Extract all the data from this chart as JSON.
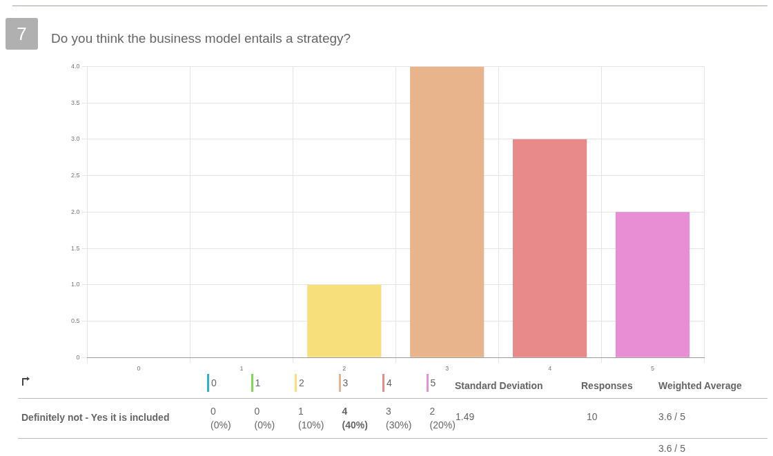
{
  "chart_data": {
    "type": "bar",
    "title": "Do you think the business model entails a strategy?",
    "categories": [
      "0",
      "1",
      "2",
      "3",
      "4",
      "5"
    ],
    "values": [
      0,
      0,
      1,
      4,
      3,
      2
    ],
    "colors": [
      "#2bb3cf",
      "#7ed957",
      "#f7e07c",
      "#e8b48c",
      "#e88a8a",
      "#e88ed4"
    ],
    "ylim": [
      0,
      4
    ],
    "yticks": [
      0,
      0.5,
      {
        "value": 1,
        "label": "1.0"
      },
      1.5,
      {
        "value": 2,
        "label": "2.0"
      },
      2.5,
      {
        "value": 3,
        "label": "3.0"
      },
      3.5,
      {
        "value": 4,
        "label": "4.0"
      }
    ],
    "grid": true,
    "annotations": [
      "7",
      "Definitely not - Yes it is included",
      "Standard Deviation",
      "Responses",
      "Weighted Average",
      "1.49",
      "10",
      "3.6 / 5",
      "3.6 / 5",
      "0",
      "0",
      "1",
      "4",
      "3",
      "2",
      "(0%)",
      "(0%)",
      "(10%)",
      "(40%)",
      "(30%)",
      "(20%)"
    ]
  }
}
